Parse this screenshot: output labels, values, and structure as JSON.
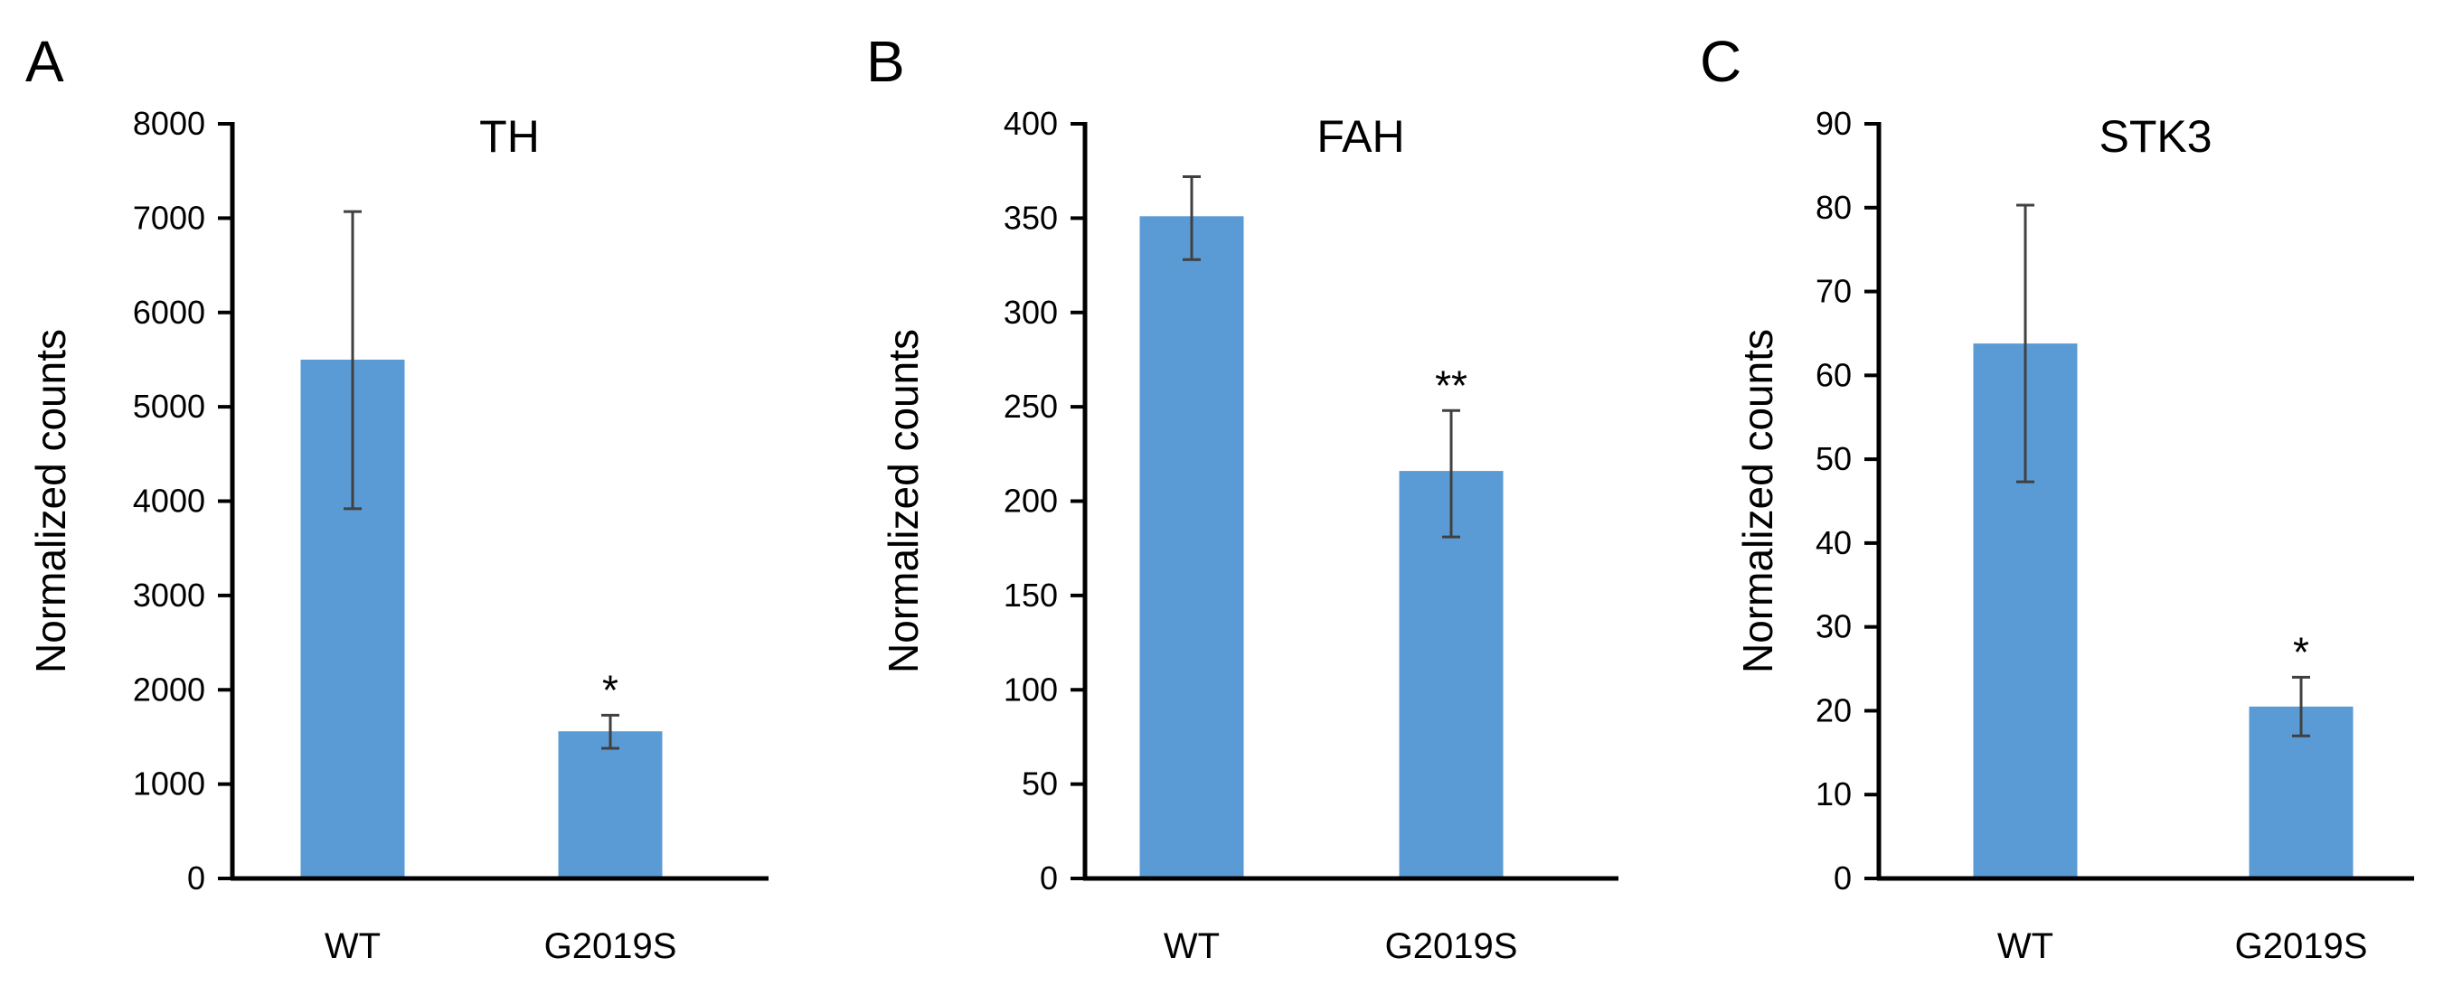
{
  "colors": {
    "bar": "#5b9bd5",
    "axis": "#000000",
    "error_bar": "#404040"
  },
  "chart_data": [
    {
      "type": "bar",
      "panel": "A",
      "title": "TH",
      "ylabel": "Normalized  counts",
      "xlabel": "",
      "categories": [
        "WT",
        "G2019S"
      ],
      "values": [
        5500,
        1560
      ],
      "error_high": [
        7070,
        1730
      ],
      "error_low": [
        3920,
        1380
      ],
      "significance": [
        "",
        "*"
      ],
      "ylim": [
        0,
        8000
      ],
      "yticks": [
        0,
        1000,
        2000,
        3000,
        4000,
        5000,
        6000,
        7000,
        8000
      ]
    },
    {
      "type": "bar",
      "panel": "B",
      "title": "FAH",
      "ylabel": "Normalized  counts",
      "xlabel": "",
      "categories": [
        "WT",
        "G2019S"
      ],
      "values": [
        351,
        216
      ],
      "error_high": [
        372,
        248
      ],
      "error_low": [
        328,
        181
      ],
      "significance": [
        "",
        "**"
      ],
      "ylim": [
        0,
        400
      ],
      "yticks": [
        0,
        50,
        100,
        150,
        200,
        250,
        300,
        350,
        400
      ]
    },
    {
      "type": "bar",
      "panel": "C",
      "title": "STK3",
      "ylabel": "Normalized  counts",
      "xlabel": "",
      "categories": [
        "WT",
        "G2019S"
      ],
      "values": [
        63.8,
        20.5
      ],
      "error_high": [
        80.3,
        24.0
      ],
      "error_low": [
        47.3,
        17.0
      ],
      "significance": [
        "",
        "*"
      ],
      "ylim": [
        0,
        90
      ],
      "yticks": [
        0,
        10,
        20,
        30,
        40,
        50,
        60,
        70,
        80,
        90
      ]
    }
  ]
}
